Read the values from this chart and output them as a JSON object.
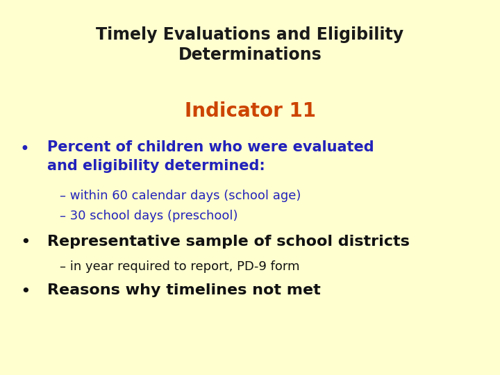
{
  "background_color": "#FFFFD0",
  "title_line1": "Timely Evaluations and Eligibility",
  "title_line2": "Determinations",
  "title_color": "#1a1a1a",
  "title_fontsize": 17,
  "indicator_text": "Indicator 11",
  "indicator_color": "#CC4400",
  "indicator_fontsize": 20,
  "bullet1_line1": "Percent of children who were evaluated",
  "bullet1_line2": "and eligibility determined:",
  "bullet1_color": "#2222BB",
  "bullet1_fontsize": 15,
  "sub1_text": "– within 60 calendar days (school age)",
  "sub2_text": "– 30 school days (preschool)",
  "sub_color": "#2222BB",
  "sub_fontsize": 13,
  "bullet2_text": "Representative sample of school districts",
  "bullet2_color": "#111111",
  "bullet2_fontsize": 16,
  "sub3_text": "– in year required to report, PD-9 form",
  "sub3_color": "#111111",
  "sub3_fontsize": 13,
  "bullet3_text": "Reasons why timelines not met",
  "bullet3_color": "#111111",
  "bullet3_fontsize": 16,
  "bullet_symbol": "•"
}
